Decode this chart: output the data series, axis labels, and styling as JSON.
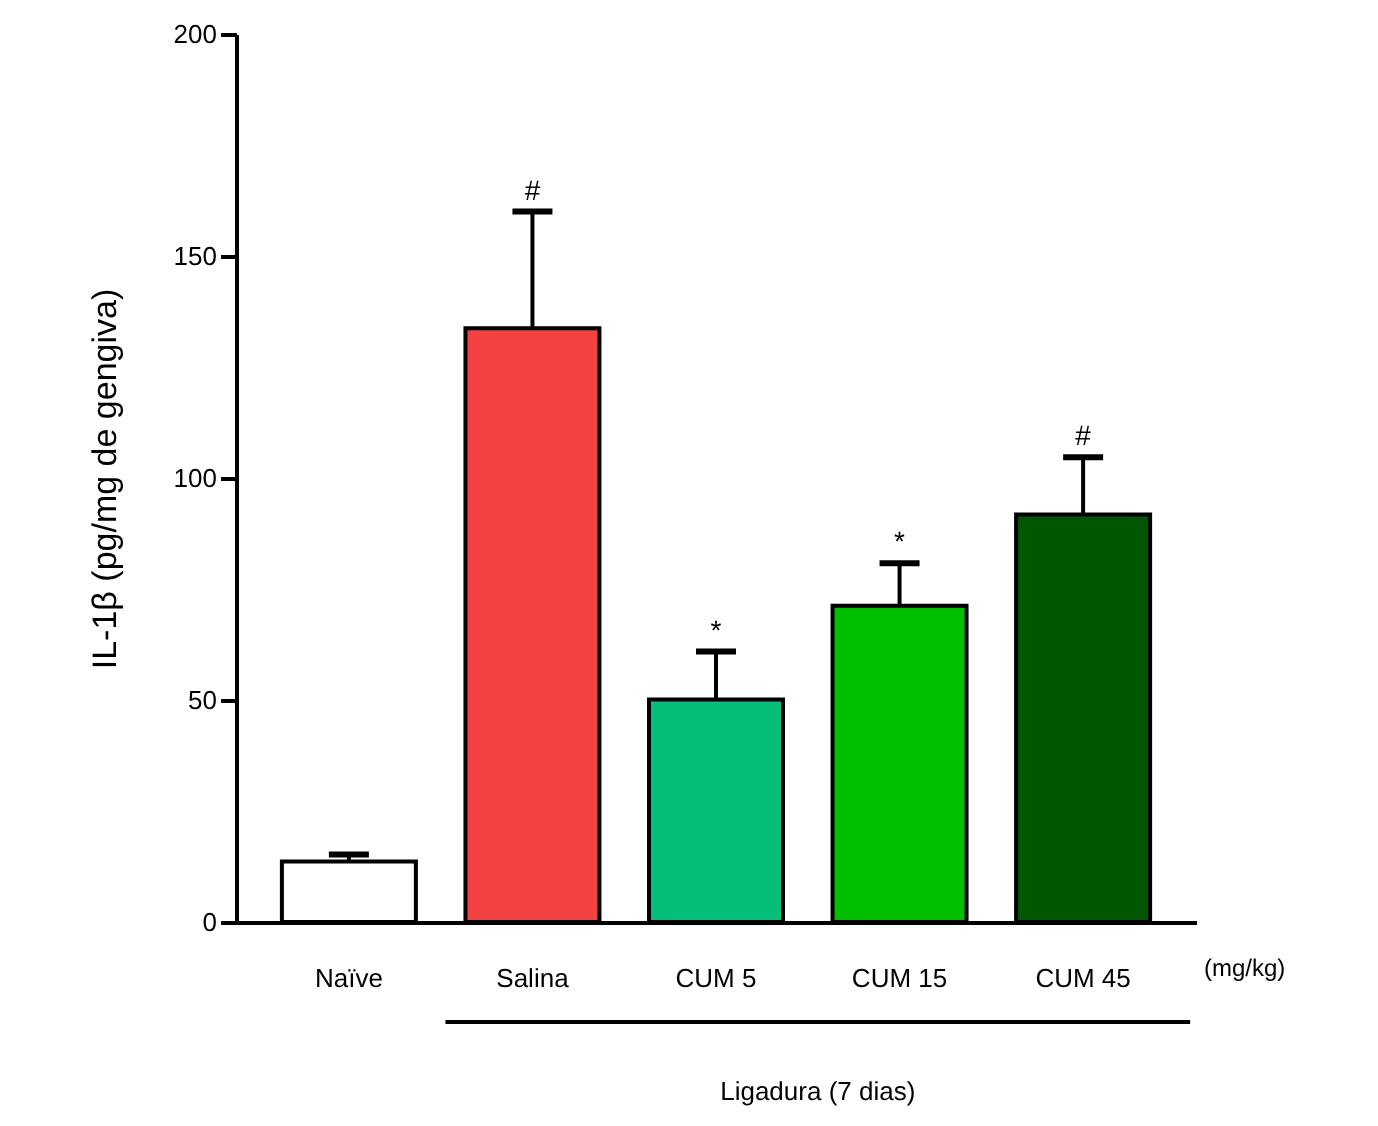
{
  "chart_data": {
    "type": "bar",
    "ylabel": "IL-1β (pg/mg de gengiva)",
    "categories": [
      "Naïve",
      "Salina",
      "CUM 5",
      "CUM 15",
      "CUM 45"
    ],
    "values": [
      13.6,
      133.7,
      50.1,
      71.2,
      91.8
    ],
    "colors": [
      "#ffffff",
      "#f44141",
      "#05bf78",
      "#00bf00",
      "#005700"
    ],
    "errors": [
      [
        13.6,
        15.2
      ],
      [
        133.7,
        160.0
      ],
      [
        50.1,
        60.9
      ],
      [
        71.2,
        80.8
      ],
      [
        91.8,
        104.7
      ]
    ],
    "ylim": [
      0,
      200
    ],
    "yticks": [
      0,
      50,
      100,
      150,
      200
    ],
    "grid": false,
    "annotations": [
      {
        "text": "#",
        "x": "Salina",
        "y": 160.0
      },
      {
        "text": "*",
        "x": "CUM 5",
        "y": 60.9
      },
      {
        "text": "*",
        "x": "CUM 15",
        "y": 80.8
      },
      {
        "text": "#",
        "x": "CUM 45",
        "y": 104.7
      },
      "(mg/kg)",
      "Ligadura (7 dias)"
    ]
  }
}
